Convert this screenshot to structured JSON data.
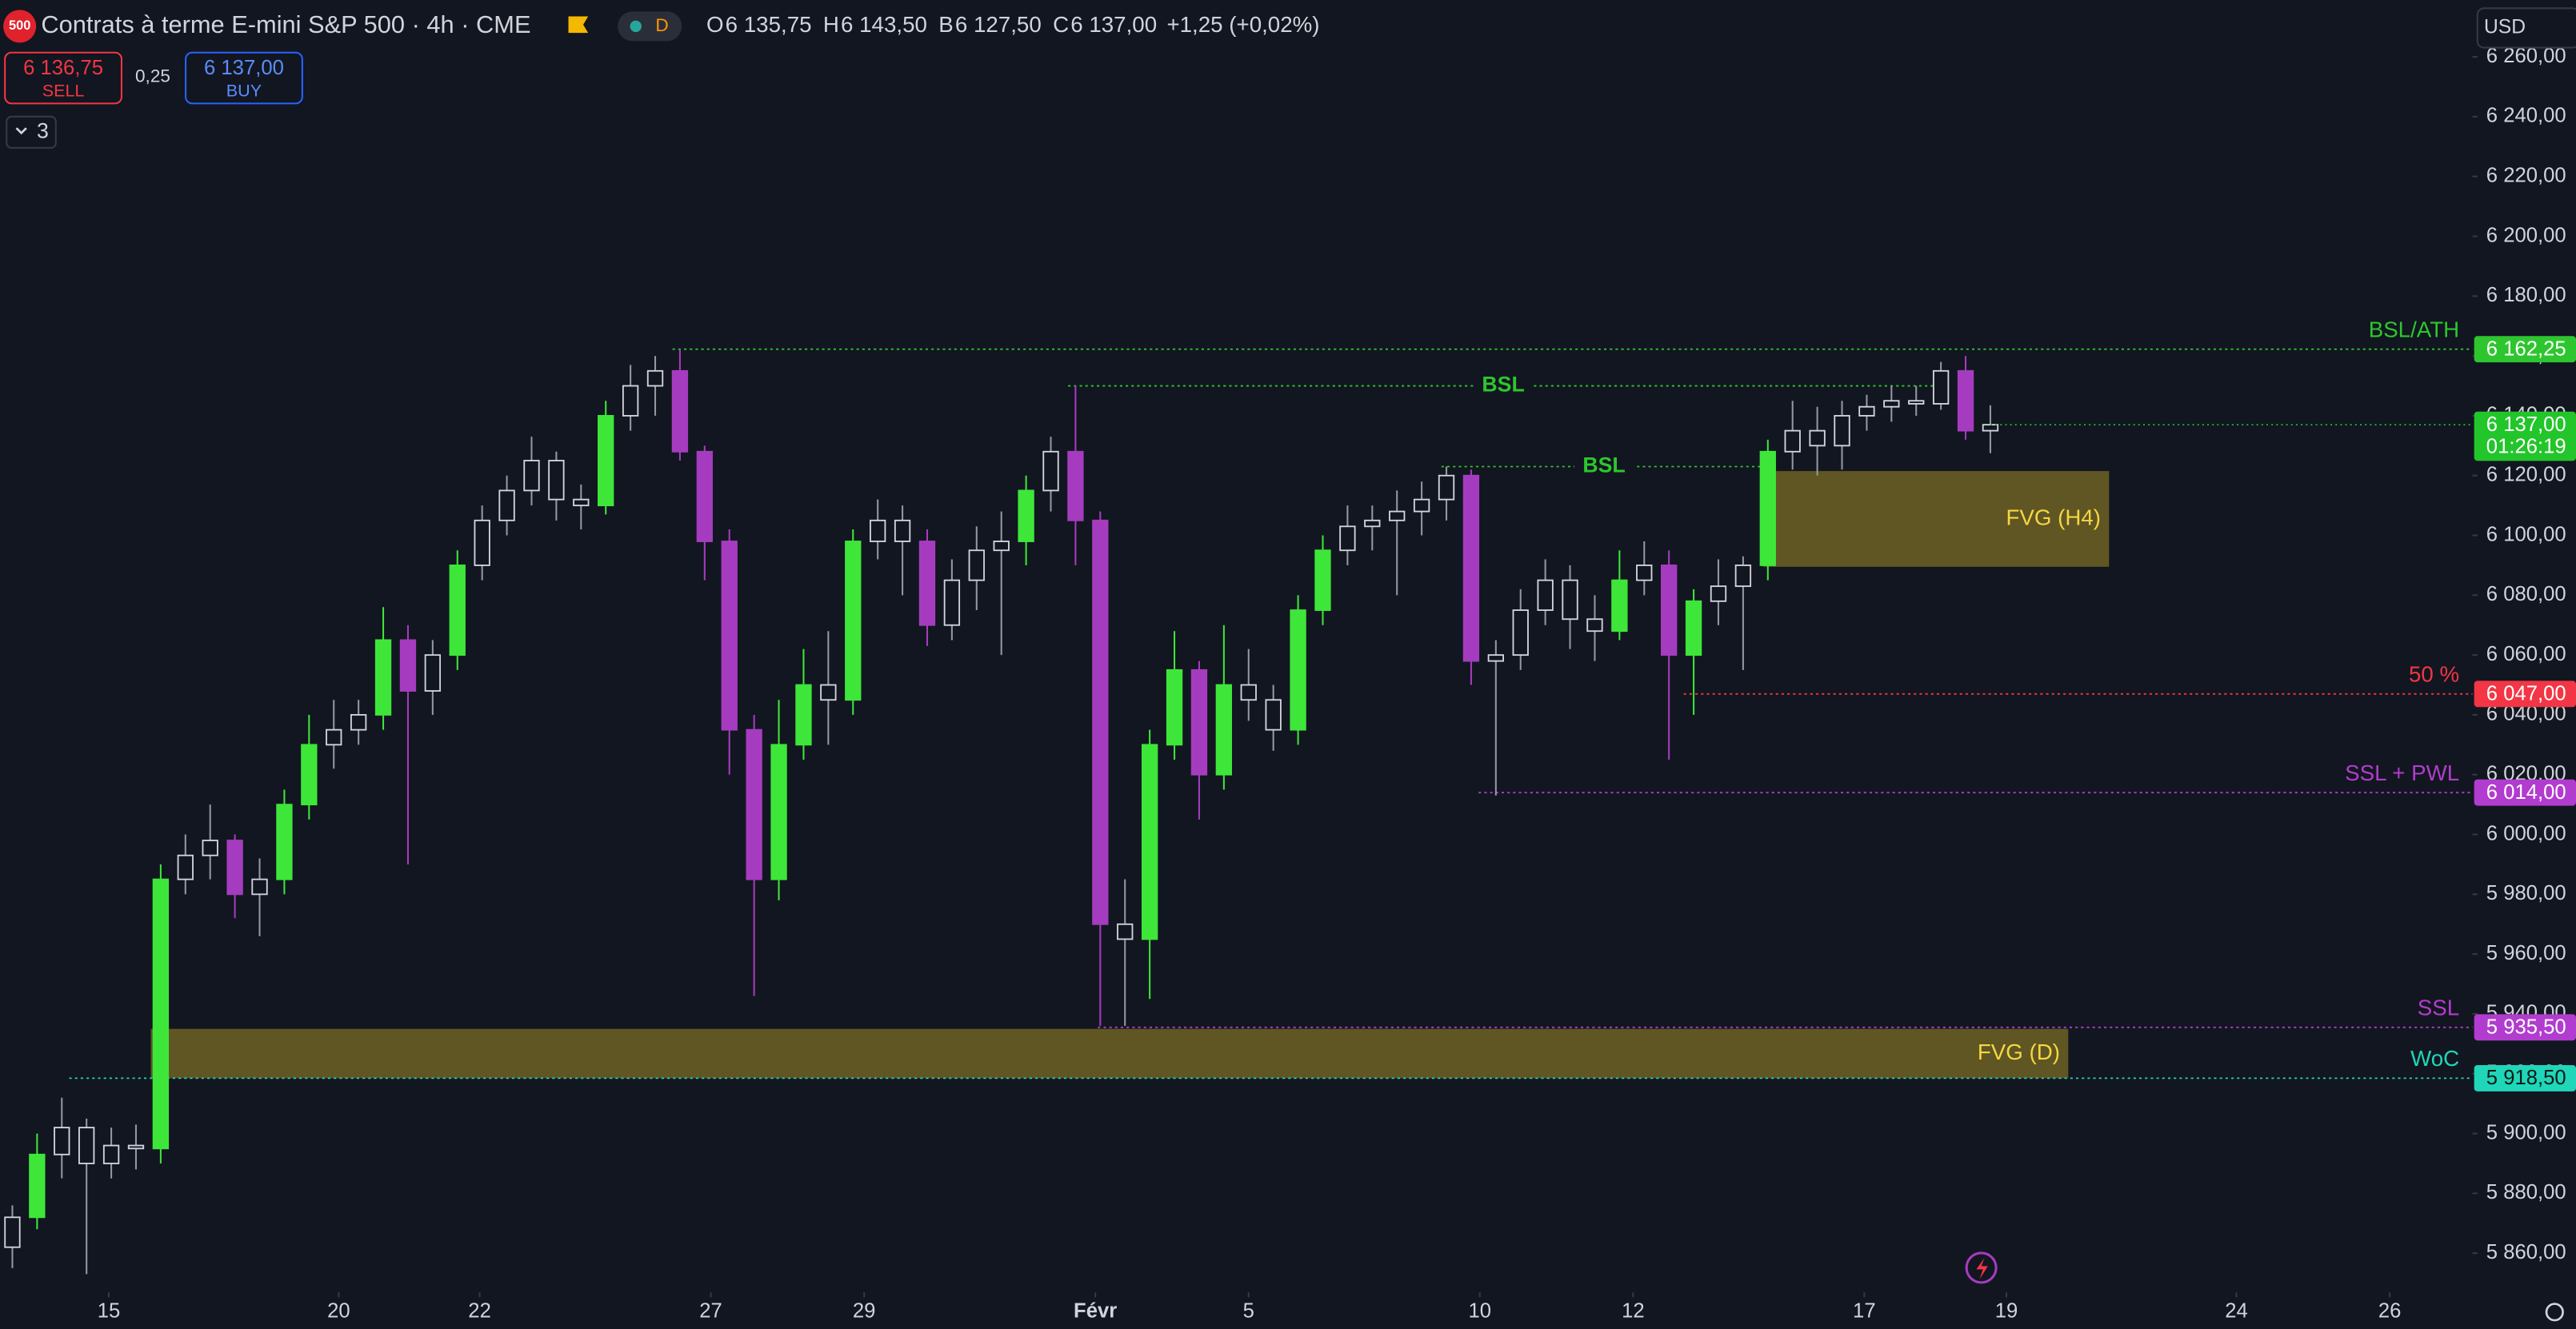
{
  "header": {
    "logo": "500",
    "title": "Contrats à terme E-mini S&P 500 · 4h · CME",
    "session": "D",
    "ohlc": [
      {
        "key": "O",
        "value": "6 135,75"
      },
      {
        "key": "H",
        "value": "6 143,50"
      },
      {
        "key": "B",
        "value": "6 127,50"
      },
      {
        "key": "C",
        "value": "6 137,00"
      }
    ],
    "change": "+1,25 (+0,02%)",
    "sell": {
      "price": "6 136,75",
      "label": "SELL"
    },
    "spread": "0,25",
    "buy": {
      "price": "6 137,00",
      "label": "BUY"
    },
    "indicators": "3",
    "currency": "USD"
  },
  "chart_data": {
    "type": "candlestick",
    "x": [
      1,
      3,
      5,
      7,
      9,
      11,
      13,
      15,
      17,
      19,
      21,
      23,
      25,
      27,
      29,
      31,
      33,
      35,
      37,
      39,
      41,
      43,
      45,
      47,
      49,
      51,
      53,
      55,
      57,
      59,
      61,
      63,
      65,
      67,
      69,
      71,
      73,
      75,
      77,
      79,
      81,
      83,
      85,
      87,
      89,
      91,
      93,
      95,
      97,
      99,
      101,
      103,
      105,
      107,
      109,
      111,
      113,
      115,
      117,
      119,
      121,
      123,
      125,
      127,
      129,
      131,
      133,
      135,
      137,
      139,
      141,
      143,
      145,
      147,
      149,
      151,
      153,
      155,
      157,
      159,
      161
    ],
    "open": [
      5862,
      5872,
      5893,
      5902,
      5890,
      5896,
      5895,
      5985,
      5993,
      5998,
      5980,
      5985,
      6010,
      6030,
      6035,
      6040,
      6065,
      6048,
      6060,
      6090,
      6105,
      6115,
      6125,
      6112,
      6110,
      6140,
      6150,
      6155,
      6128,
      6098,
      6035,
      5985,
      6030,
      6050,
      6045,
      6098,
      6105,
      6098,
      6070,
      6085,
      6095,
      6098,
      6115,
      6128,
      6105,
      5970,
      5965,
      6030,
      6055,
      6020,
      6050,
      6045,
      6035,
      6075,
      6095,
      6103,
      6105,
      6108,
      6112,
      6120,
      6058,
      6060,
      6075,
      6085,
      6072,
      6068,
      6085,
      6090,
      6060,
      6078,
      6083,
      6090,
      6128,
      6135,
      6130,
      6140,
      6143,
      6145,
      6144,
      6155,
      6135
    ],
    "high": [
      5876,
      5900,
      5912,
      5905,
      5902,
      5903,
      5990,
      6000,
      6010,
      6000,
      5992,
      6015,
      6040,
      6045,
      6045,
      6076,
      6070,
      6065,
      6095,
      6110,
      6120,
      6133,
      6128,
      6117,
      6145,
      6157,
      6160,
      6162.25,
      6130,
      6102,
      6040,
      6045,
      6062,
      6068,
      6102,
      6112,
      6110,
      6102,
      6092,
      6103,
      6108,
      6120,
      6133,
      6150,
      6108,
      5985,
      6035,
      6068,
      6058,
      6070,
      6062,
      6050,
      6080,
      6100,
      6110,
      6110,
      6115,
      6118,
      6123,
      6122,
      6065,
      6082,
      6092,
      6090,
      6080,
      6095,
      6098,
      6095,
      6082,
      6092,
      6093,
      6132,
      6145,
      6143,
      6145,
      6147,
      6150,
      6150,
      6158,
      6160,
      6143.5
    ],
    "low": [
      5855,
      5868,
      5885,
      5853,
      5885,
      5888,
      5890,
      5980,
      5985,
      5972,
      5966,
      5980,
      6005,
      6022,
      6030,
      6035,
      5990,
      6040,
      6055,
      6085,
      6100,
      6110,
      6105,
      6102,
      6107,
      6135,
      6140,
      6125,
      6085,
      6020,
      5946,
      5978,
      6025,
      6030,
      6040,
      6092,
      6080,
      6063,
      6065,
      6075,
      6060,
      6090,
      6108,
      6090,
      5936,
      5936,
      5945,
      6025,
      6005,
      6015,
      6038,
      6028,
      6030,
      6070,
      6090,
      6095,
      6080,
      6100,
      6105,
      6050,
      6013,
      6055,
      6070,
      6062,
      6058,
      6065,
      6080,
      6025,
      6040,
      6070,
      6055,
      6085,
      6122,
      6120,
      6122,
      6135,
      6138,
      6140,
      6142,
      6132,
      6127.5
    ],
    "close": [
      5872,
      5893,
      5902,
      5890,
      5896,
      5895,
      5985,
      5993,
      5998,
      5980,
      5985,
      6010,
      6030,
      6035,
      6040,
      6065,
      6048,
      6060,
      6090,
      6105,
      6115,
      6125,
      6112,
      6110,
      6140,
      6150,
      6155,
      6128,
      6098,
      6035,
      5985,
      6030,
      6050,
      6045,
      6098,
      6105,
      6098,
      6070,
      6085,
      6095,
      6098,
      6115,
      6128,
      6105,
      5970,
      5965,
      6030,
      6055,
      6020,
      6050,
      6045,
      6035,
      6075,
      6095,
      6103,
      6105,
      6108,
      6112,
      6120,
      6058,
      6060,
      6075,
      6085,
      6072,
      6068,
      6085,
      6090,
      6060,
      6078,
      6083,
      6090,
      6128,
      6135,
      6130,
      6140,
      6143,
      6145,
      6144,
      6155,
      6135,
      6137
    ],
    "up_color": "#3ee63a",
    "down_color": "#a53cbf",
    "xlim": [
      0,
      200
    ],
    "xticks": [
      {
        "value": 8.8,
        "label": "15"
      },
      {
        "value": 27.4,
        "label": "20"
      },
      {
        "value": 38.8,
        "label": "22"
      },
      {
        "value": 57.5,
        "label": "27"
      },
      {
        "value": 69.9,
        "label": "29"
      },
      {
        "value": 88.6,
        "label": "Févr"
      },
      {
        "value": 101,
        "label": "5"
      },
      {
        "value": 119.7,
        "label": "10"
      },
      {
        "value": 132.1,
        "label": "12"
      },
      {
        "value": 150.8,
        "label": "17"
      },
      {
        "value": 162.3,
        "label": "19"
      },
      {
        "value": 180.9,
        "label": "24"
      },
      {
        "value": 193.3,
        "label": "26"
      }
    ],
    "ylim": [
      5848,
      6279
    ],
    "yticks": [
      {
        "value": 5860,
        "label": "5 860,00"
      },
      {
        "value": 5880,
        "label": "5 880,00"
      },
      {
        "value": 5900,
        "label": "5 900,00"
      },
      {
        "value": 5920,
        "label": "5 920,00"
      },
      {
        "value": 5940,
        "label": "5 940,00"
      },
      {
        "value": 5960,
        "label": "5 960,00"
      },
      {
        "value": 5980,
        "label": "5 980,00"
      },
      {
        "value": 6000,
        "label": "6 000,00"
      },
      {
        "value": 6020,
        "label": "6 020,00"
      },
      {
        "value": 6040,
        "label": "6 040,00"
      },
      {
        "value": 6060,
        "label": "6 060,00"
      },
      {
        "value": 6080,
        "label": "6 080,00"
      },
      {
        "value": 6100,
        "label": "6 100,00"
      },
      {
        "value": 6120,
        "label": "6 120,00"
      },
      {
        "value": 6140,
        "label": "6 140,00"
      },
      {
        "value": 6160,
        "label": "6 160,00"
      },
      {
        "value": 6180,
        "label": "6 180,00"
      },
      {
        "value": 6200,
        "label": "6 200,00"
      },
      {
        "value": 6220,
        "label": "6 220,00"
      },
      {
        "value": 6240,
        "label": "6 240,00"
      },
      {
        "value": 6260,
        "label": "6 260,00"
      }
    ],
    "last_price": {
      "value": 6137,
      "label": "6 137,00",
      "countdown": "01:26:19",
      "color": "#22c52a"
    },
    "levels": [
      {
        "label": "BSL/ATH",
        "value": 6162.25,
        "value_label": "6 162,25",
        "x_start": 54.4,
        "color": "#2ec62e"
      },
      {
        "label": "BSL",
        "value": 6150,
        "x_start": 86.4,
        "x_end": 156.8,
        "color": "#2ec62e"
      },
      {
        "label": "BSL",
        "value": 6123,
        "x_start": 116.6,
        "x_end": 142.9,
        "color": "#2ec62e"
      },
      {
        "label": "50 %",
        "value": 6047,
        "value_label": "6 047,00",
        "x_start": 136.2,
        "color": "#f23645"
      },
      {
        "label": "SSL + PWL",
        "value": 6014,
        "value_label": "6 014,00",
        "x_start": 119.6,
        "color": "#b23ccf"
      },
      {
        "label": "SSL",
        "value": 5935.5,
        "value_label": "5 935,50",
        "x_start": 88.8,
        "color": "#b23ccf"
      },
      {
        "label": "WoC",
        "value": 5918.5,
        "value_label": "5 918,50",
        "x_start": 5.6,
        "color": "#20d6b8"
      }
    ],
    "zones": [
      {
        "label": "FVG (H4)",
        "x": [
          142.6,
          170.6
        ],
        "y": [
          6089.5,
          6121.5
        ],
        "color": "#6e6224"
      },
      {
        "label": "FVG (D)",
        "x": [
          12.2,
          167.3
        ],
        "y": [
          5918.5,
          5935
        ],
        "color": "#6e6224"
      }
    ]
  }
}
